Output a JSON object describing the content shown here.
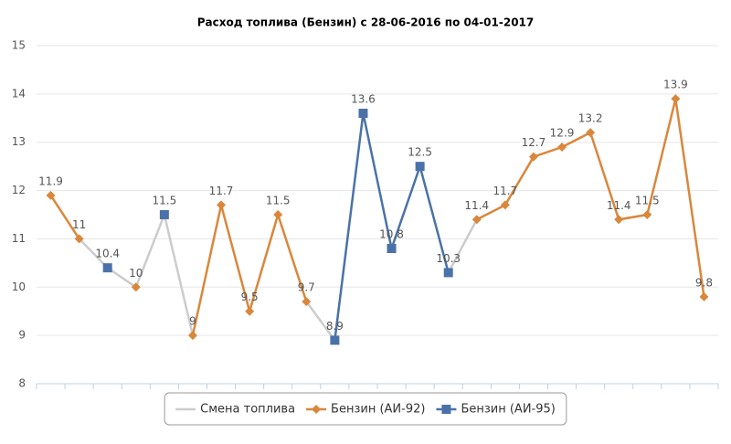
{
  "chart_data": {
    "type": "line",
    "title": "Расход топлива (Бензин) с 28-06-2016 по 04-01-2017",
    "ylim": [
      8,
      15
    ],
    "yticks": [
      8,
      9,
      10,
      11,
      12,
      13,
      14,
      15
    ],
    "grid": true,
    "legend": "bottom",
    "series": [
      {
        "name": "Смена топлива",
        "color": "#cccccc",
        "marker": "none",
        "values": [
          null,
          11,
          10.4,
          10,
          11.5,
          9,
          null,
          null,
          null,
          9.7,
          8.9,
          null,
          null,
          null,
          10.3,
          11.4,
          null,
          null,
          null,
          null,
          null,
          null,
          null,
          null
        ]
      },
      {
        "name": "Бензин (АИ-92)",
        "color": "#d9873b",
        "marker": "diamond",
        "values": [
          11.9,
          11,
          null,
          10,
          null,
          9,
          11.7,
          9.5,
          11.5,
          9.7,
          null,
          null,
          null,
          null,
          null,
          11.4,
          11.7,
          12.7,
          12.9,
          13.2,
          11.4,
          11.5,
          13.9,
          9.8
        ]
      },
      {
        "name": "Бензин (АИ-95)",
        "color": "#4a72a8",
        "marker": "square",
        "values": [
          null,
          null,
          10.4,
          null,
          11.5,
          null,
          null,
          null,
          null,
          null,
          8.9,
          13.6,
          10.8,
          12.5,
          10.3,
          null,
          null,
          null,
          null,
          null,
          null,
          null,
          null,
          null
        ]
      }
    ]
  }
}
